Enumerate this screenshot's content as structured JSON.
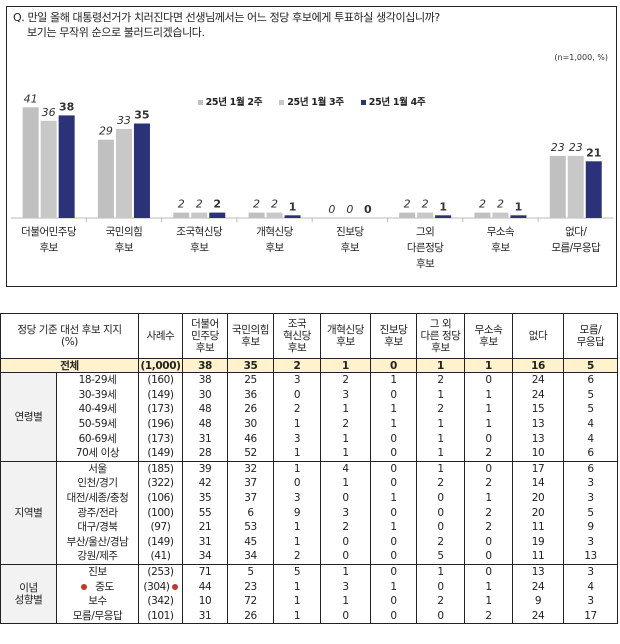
{
  "question": {
    "line1": "Q. 만일 올해 대통령선거가 치러진다면 선생님께서는 어느 정당 후보에게 투표하실 생각이십니까?",
    "line2": "보기는 무작위 순으로 불러드리겠습니다."
  },
  "sample_note": "(n=1,000, %)",
  "colors": {
    "series1": "#c0c0c0",
    "series2": "#c8c8c8",
    "series3": "#2b3278",
    "total_row": "#fff2cc",
    "marker": "#c0392b"
  },
  "chart_data": {
    "type": "bar",
    "categories": [
      "더불어민주당\n후보",
      "국민의힘\n후보",
      "조국혁신당\n후보",
      "개혁신당\n후보",
      "진보당\n후보",
      "그외\n다른정당\n후보",
      "무소속\n후보",
      "없다/\n모름/무응답"
    ],
    "series": [
      {
        "name": "25년 1월 2주",
        "values": [
          41,
          29,
          2,
          2,
          0,
          2,
          2,
          23
        ]
      },
      {
        "name": "25년 1월 3주",
        "values": [
          36,
          33,
          2,
          2,
          0,
          2,
          2,
          23
        ]
      },
      {
        "name": "25년 1월 4주",
        "values": [
          38,
          35,
          2,
          1,
          0,
          1,
          1,
          21
        ]
      }
    ],
    "ylim": [
      0,
      45
    ],
    "grid": false,
    "legend": "top-center"
  },
  "table": {
    "corner_header": "정당 기준 대선 후보 지지\n(%)",
    "n_header": "사례수",
    "columns": [
      "더불어\n민주당\n후보",
      "국민의힘\n후보",
      "조국\n혁신당\n후보",
      "개혁신당\n후보",
      "진보당\n후보",
      "그 외\n다른 정당\n후보",
      "무소속\n후보",
      "없다",
      "모름/\n무응답"
    ],
    "total": {
      "label": "전체",
      "n": "(1,000)",
      "values": [
        "38",
        "35",
        "2",
        "1",
        "0",
        "1",
        "1",
        "16",
        "5"
      ]
    },
    "groups": [
      {
        "label": "연령별",
        "rows": [
          {
            "label": "18-29세",
            "n": "(160)",
            "values": [
              "38",
              "25",
              "3",
              "2",
              "1",
              "2",
              "0",
              "24",
              "6"
            ]
          },
          {
            "label": "30-39세",
            "n": "(149)",
            "values": [
              "30",
              "36",
              "0",
              "3",
              "0",
              "1",
              "1",
              "24",
              "5"
            ]
          },
          {
            "label": "40-49세",
            "n": "(173)",
            "values": [
              "48",
              "26",
              "2",
              "1",
              "1",
              "2",
              "1",
              "15",
              "5"
            ]
          },
          {
            "label": "50-59세",
            "n": "(196)",
            "values": [
              "48",
              "30",
              "1",
              "2",
              "1",
              "1",
              "1",
              "13",
              "4"
            ]
          },
          {
            "label": "60-69세",
            "n": "(173)",
            "values": [
              "31",
              "46",
              "3",
              "1",
              "0",
              "1",
              "0",
              "13",
              "4"
            ]
          },
          {
            "label": "70세 이상",
            "n": "(149)",
            "values": [
              "28",
              "52",
              "1",
              "1",
              "0",
              "1",
              "2",
              "10",
              "6"
            ]
          }
        ]
      },
      {
        "label": "지역별",
        "rows": [
          {
            "label": "서울",
            "n": "(185)",
            "values": [
              "39",
              "32",
              "1",
              "4",
              "0",
              "1",
              "0",
              "17",
              "6"
            ]
          },
          {
            "label": "인천/경기",
            "n": "(322)",
            "values": [
              "42",
              "37",
              "0",
              "1",
              "0",
              "2",
              "2",
              "14",
              "3"
            ]
          },
          {
            "label": "대전/세종/충청",
            "n": "(106)",
            "values": [
              "35",
              "37",
              "3",
              "0",
              "1",
              "0",
              "1",
              "20",
              "3"
            ]
          },
          {
            "label": "광주/전라",
            "n": "(100)",
            "values": [
              "55",
              "6",
              "9",
              "3",
              "0",
              "0",
              "2",
              "20",
              "5"
            ]
          },
          {
            "label": "대구/경북",
            "n": "(97)",
            "values": [
              "21",
              "53",
              "1",
              "2",
              "1",
              "0",
              "2",
              "11",
              "9"
            ]
          },
          {
            "label": "부산/울산/경남",
            "n": "(149)",
            "values": [
              "31",
              "45",
              "1",
              "0",
              "0",
              "2",
              "0",
              "19",
              "3"
            ]
          },
          {
            "label": "강원/제주",
            "n": "(41)",
            "values": [
              "34",
              "34",
              "2",
              "0",
              "0",
              "5",
              "0",
              "11",
              "13"
            ]
          }
        ]
      },
      {
        "label": "이념\n성향별",
        "rows": [
          {
            "label": "진보",
            "n": "(253)",
            "values": [
              "71",
              "5",
              "5",
              "1",
              "0",
              "1",
              "0",
              "13",
              "3"
            ]
          },
          {
            "label": "중도",
            "n": "(304)",
            "values": [
              "44",
              "23",
              "1",
              "3",
              "1",
              "0",
              "1",
              "24",
              "4"
            ],
            "marked": true
          },
          {
            "label": "보수",
            "n": "(342)",
            "values": [
              "10",
              "72",
              "1",
              "1",
              "0",
              "2",
              "1",
              "9",
              "3"
            ]
          },
          {
            "label": "모름/무응답",
            "n": "(101)",
            "values": [
              "31",
              "26",
              "1",
              "0",
              "0",
              "0",
              "2",
              "24",
              "17"
            ]
          }
        ]
      }
    ]
  }
}
